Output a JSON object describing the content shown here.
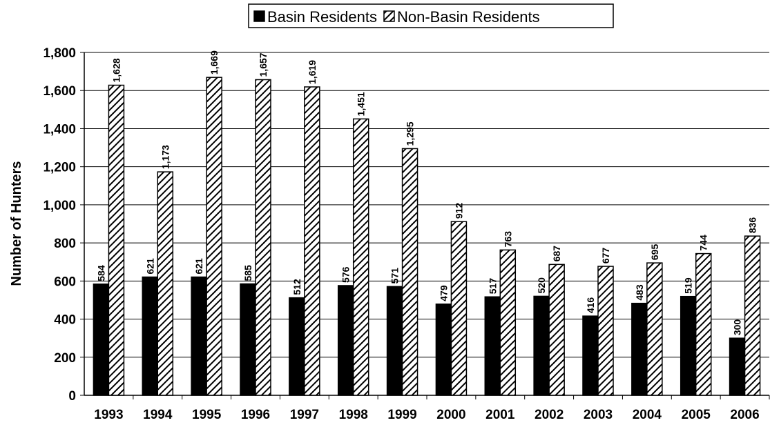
{
  "chart_data": {
    "type": "bar",
    "y_label": "Number of Hunters",
    "categories": [
      "1993",
      "1994",
      "1995",
      "1996",
      "1997",
      "1998",
      "1999",
      "2000",
      "2001",
      "2002",
      "2003",
      "2004",
      "2005",
      "2006"
    ],
    "series": [
      {
        "name": "Basin Residents",
        "color": "#000000",
        "pattern": "solid",
        "values": [
          584,
          621,
          621,
          585,
          512,
          576,
          571,
          479,
          517,
          520,
          416,
          483,
          519,
          300
        ]
      },
      {
        "name": "Non-Basin Residents",
        "color": "#000000",
        "pattern": "hatch",
        "values": [
          1628,
          1173,
          1669,
          1657,
          1619,
          1451,
          1295,
          912,
          763,
          687,
          677,
          695,
          744,
          836
        ],
        "value_labels": [
          "1,628",
          "1,173",
          "1,669",
          "1,657",
          "1,619",
          "1,451",
          "1,295",
          "912",
          "763",
          "687",
          "677",
          "695",
          "744",
          "836"
        ]
      }
    ],
    "ylim": [
      0,
      1800
    ],
    "yticks": [
      0,
      200,
      400,
      600,
      800,
      {
        "value": 1000,
        "label": "1,000"
      },
      {
        "value": 1200,
        "label": "1,200"
      },
      {
        "value": 1400,
        "label": "1,400"
      },
      {
        "value": 1600,
        "label": "1,600"
      },
      {
        "value": 1800,
        "label": "1,800"
      }
    ],
    "grid": true,
    "legend": "top"
  }
}
